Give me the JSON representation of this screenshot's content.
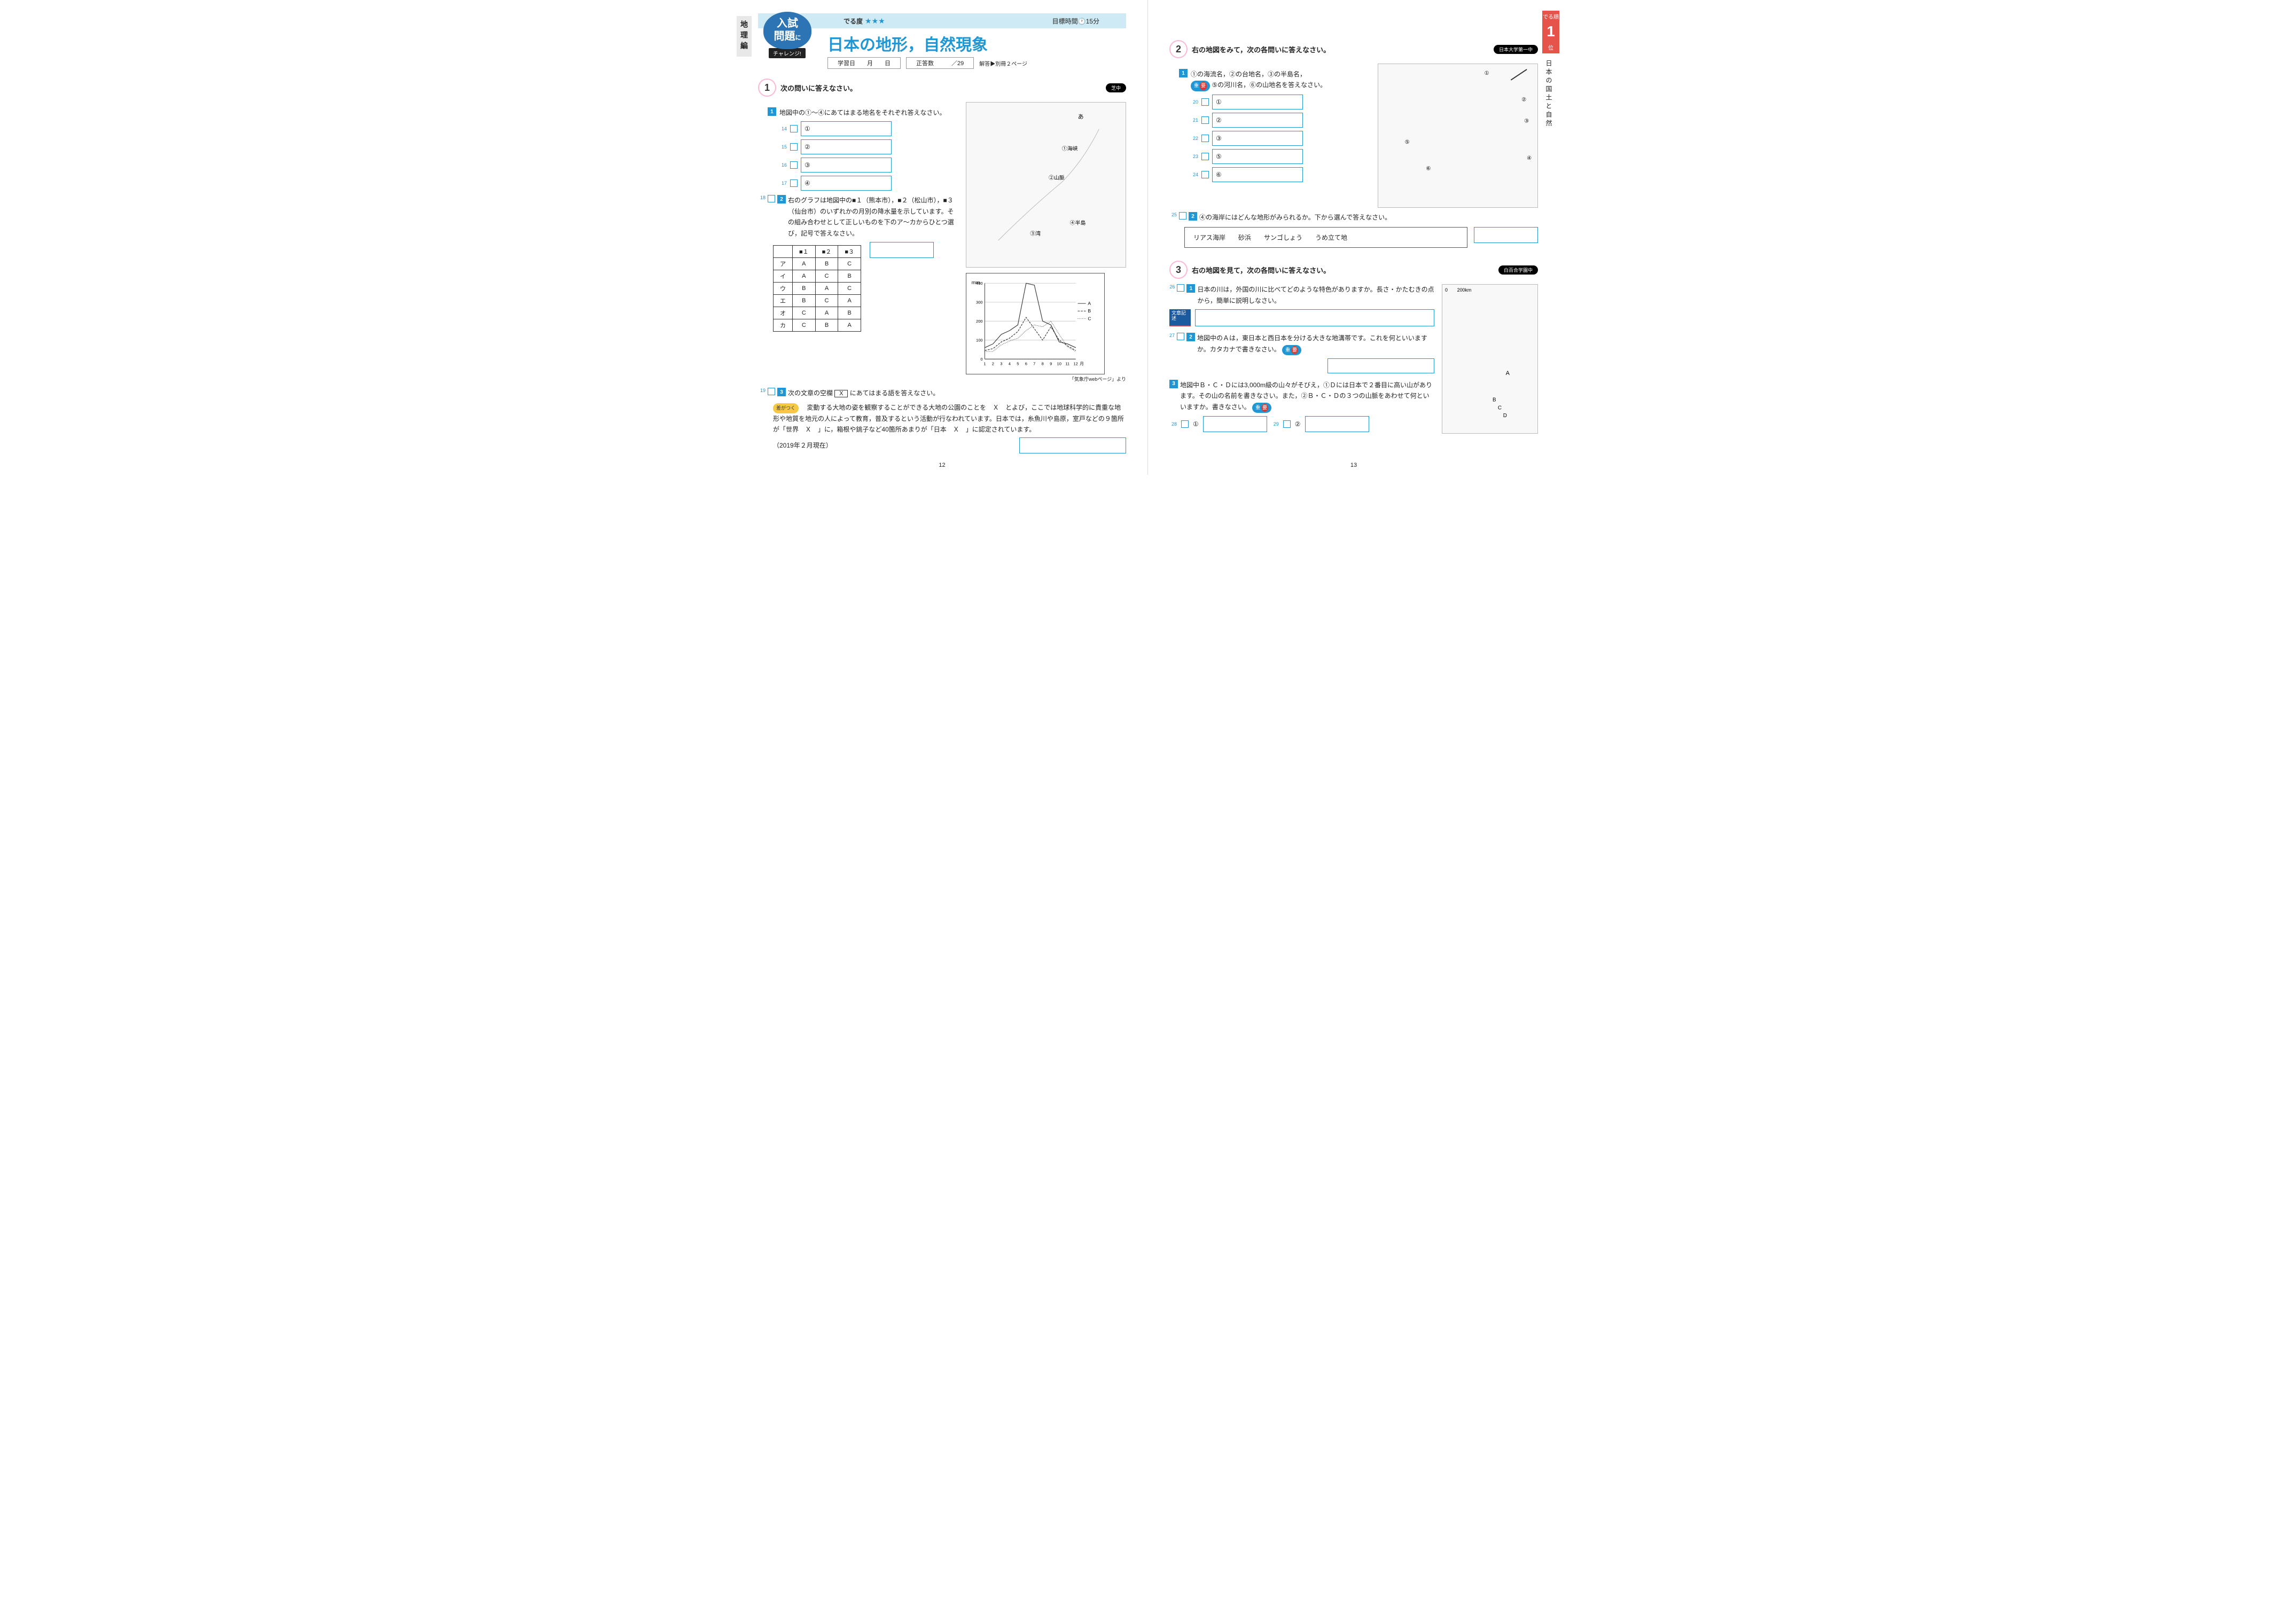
{
  "left_tab": "地理編",
  "right_tab": {
    "label": "でる順",
    "rank": "1",
    "suffix": "位",
    "subject": "日本の国土と自然"
  },
  "header": {
    "deru": "でる度",
    "stars": "★★★",
    "time_label": "目標時間",
    "time_val": "15分"
  },
  "emblem": {
    "line1": "入試",
    "line2": "問題",
    "small": "に",
    "challenge": "チャレンジ!"
  },
  "title": "日本の地形，自然現象",
  "meta": {
    "study": "学習日",
    "month": "月",
    "day": "日",
    "correct": "正答数",
    "total": "／29",
    "answer_ref": "解答▶別冊２ページ"
  },
  "q1": {
    "num": "1",
    "prompt": "次の問いに答えなさい。",
    "school": "芝中",
    "s1": {
      "num": "1",
      "text": "地図中の①〜④にあてはまる地名をそれぞれ答えなさい。"
    },
    "answers": [
      "①",
      "②",
      "③",
      "④"
    ],
    "ans_idx": [
      "14",
      "15",
      "16",
      "17"
    ],
    "map_labels": [
      "あ",
      "①海峡",
      "②山脈",
      "③湾",
      "④半島"
    ],
    "s2_idx": "18",
    "s2_num": "2",
    "s2_text": "右のグラフは地図中の■１（熊本市），■２（松山市），■３（仙台市）のいずれかの月別の降水量を示しています。その組み合わせとして正しいものを下のア〜カからひとつ選び，記号で答えなさい。",
    "table_head": [
      "",
      "■１",
      "■２",
      "■３"
    ],
    "table_rows": [
      [
        "ア",
        "A",
        "B",
        "C"
      ],
      [
        "イ",
        "A",
        "C",
        "B"
      ],
      [
        "ウ",
        "B",
        "A",
        "C"
      ],
      [
        "エ",
        "B",
        "C",
        "A"
      ],
      [
        "オ",
        "C",
        "A",
        "B"
      ],
      [
        "カ",
        "C",
        "B",
        "A"
      ]
    ],
    "chart_ylabel": "mm",
    "chart_ymax": 400,
    "chart_ticks": [
      0,
      100,
      200,
      300,
      400
    ],
    "chart_months": [
      "1",
      "2",
      "3",
      "4",
      "5",
      "6",
      "7",
      "8",
      "9",
      "10",
      "11",
      "12",
      "月"
    ],
    "chart_legend": [
      "A",
      "B",
      "C"
    ],
    "chart_note": "「気象庁webページ」より",
    "seriesA": [
      60,
      80,
      130,
      150,
      180,
      400,
      390,
      200,
      180,
      90,
      80,
      60
    ],
    "seriesB": [
      45,
      55,
      90,
      110,
      145,
      220,
      160,
      100,
      170,
      100,
      70,
      45
    ],
    "seriesC": [
      40,
      40,
      75,
      95,
      110,
      150,
      180,
      170,
      200,
      130,
      65,
      40
    ],
    "s3_idx": "19",
    "s3_num": "3",
    "s3_prompt": "次の文章の空欄",
    "s3_prompt2": "にあてはまる語を答えなさい。",
    "x": "Ｘ",
    "saga": "差がつく",
    "s3_body": "　変動する大地の姿を観察することができる大地の公園のことを　Ｘ　とよび，ここでは地球科学的に貴重な地形や地質を地元の人によって教育，普及するという活動が行なわれています。日本では，糸魚川や島原，室戸などの９箇所が「世界　Ｘ　」に，箱根や銚子など40箇所あまりが「日本　Ｘ　」に認定されています。",
    "s3_date": "（2019年２月現在）"
  },
  "q2": {
    "num": "2",
    "prompt": "右の地図をみて，次の各問いに答えなさい。",
    "school": "日本大学第一中",
    "s1_num": "1",
    "s1_text": "①の海流名，②の台地名，③の半島名，",
    "juyo": "重要",
    "s1_text2": "⑤の河川名，⑥の山地名を答えなさい。",
    "answers": [
      "①",
      "②",
      "③",
      "⑤",
      "⑥"
    ],
    "ans_idx": [
      "20",
      "21",
      "22",
      "23",
      "24"
    ],
    "s2_idx": "25",
    "s2_num": "2",
    "s2_text": "④の海岸にはどんな地形がみられるか。下から選んで答えなさい。",
    "choices": [
      "リアス海岸",
      "砂浜",
      "サンゴしょう",
      "うめ立て地"
    ]
  },
  "q3": {
    "num": "3",
    "prompt": "右の地図を見て，次の各問いに答えなさい。",
    "school": "白百合学園中",
    "s1_idx": "26",
    "s1_num": "1",
    "s1_text": "日本の川は，外国の川に比べてどのような特色がありますか。長さ・かたむきの点から，簡単に説明しなさい。",
    "bunsho": "文章記述",
    "s2_idx": "27",
    "s2_num": "2",
    "s2_text": "地図中のＡは，東日本と西日本を分ける大きな地溝帯です。これを何といいますか。カタカナで書きなさい。",
    "s3_num": "3",
    "s3_text": "地図中Ｂ・Ｃ・Ｄには3,000m級の山々がそびえ，①Ｄには日本で２番目に高い山があります。その山の名前を書きなさい。また，②Ｂ・Ｃ・Ｄの３つの山脈をあわせて何といいますか。書きなさい。",
    "a3_idx1": "28",
    "a3_lbl1": "①",
    "a3_idx2": "29",
    "a3_lbl2": "②"
  },
  "page_left_num": "12",
  "page_right_num": "13"
}
